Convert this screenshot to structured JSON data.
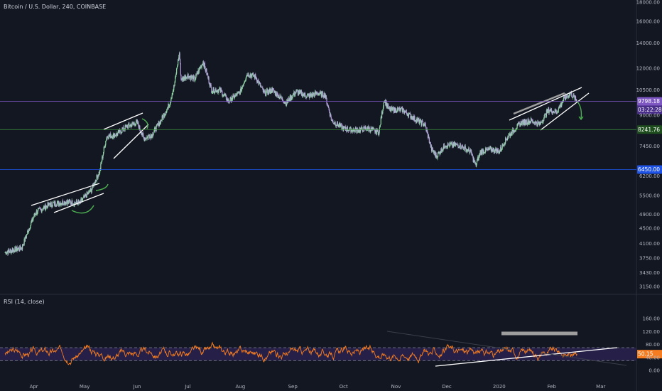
{
  "chart_data": [
    {
      "type": "candlestick",
      "title": "Bitcoin / U.S. Dollar, 240, COINBASE",
      "ylim": [
        3150,
        18000
      ],
      "y_scale": "log",
      "y_ticks": [
        "18000.00",
        "16000.00",
        "14000.00",
        "12000.00",
        "10500.00",
        "9000.00",
        "7450.00",
        "6200.00",
        "5500.00",
        "4900.00",
        "4500.00",
        "4100.00",
        "3750.00",
        "3430.00",
        "3150.00"
      ],
      "x_ticks": [
        "Apr",
        "May",
        "Jun",
        "Jul",
        "Aug",
        "Sep",
        "Oct",
        "Nov",
        "Dec",
        "2020",
        "Feb",
        "Mar"
      ],
      "close_approx": [
        [
          "2019-03-15",
          3880
        ],
        [
          "2019-03-25",
          4000
        ],
        [
          "2019-04-02",
          4950
        ],
        [
          "2019-04-10",
          5200
        ],
        [
          "2019-04-20",
          5300
        ],
        [
          "2019-04-28",
          5250
        ],
        [
          "2019-05-05",
          5700
        ],
        [
          "2019-05-10",
          6400
        ],
        [
          "2019-05-14",
          7900
        ],
        [
          "2019-05-20",
          8000
        ],
        [
          "2019-05-26",
          8400
        ],
        [
          "2019-06-01",
          8600
        ],
        [
          "2019-06-05",
          7800
        ],
        [
          "2019-06-10",
          8000
        ],
        [
          "2019-06-15",
          8700
        ],
        [
          "2019-06-20",
          9600
        ],
        [
          "2019-06-23",
          10800
        ],
        [
          "2019-06-26",
          13200
        ],
        [
          "2019-06-27",
          11200
        ],
        [
          "2019-07-01",
          11500
        ],
        [
          "2019-07-05",
          11200
        ],
        [
          "2019-07-10",
          12500
        ],
        [
          "2019-07-15",
          10500
        ],
        [
          "2019-07-20",
          10500
        ],
        [
          "2019-07-25",
          9800
        ],
        [
          "2019-08-01",
          10400
        ],
        [
          "2019-08-05",
          11600
        ],
        [
          "2019-08-10",
          11400
        ],
        [
          "2019-08-15",
          10300
        ],
        [
          "2019-08-20",
          10500
        ],
        [
          "2019-08-28",
          9700
        ],
        [
          "2019-09-03",
          10400
        ],
        [
          "2019-09-10",
          10100
        ],
        [
          "2019-09-15",
          10300
        ],
        [
          "2019-09-20",
          10200
        ],
        [
          "2019-09-24",
          8700
        ],
        [
          "2019-10-01",
          8300
        ],
        [
          "2019-10-08",
          8200
        ],
        [
          "2019-10-15",
          8300
        ],
        [
          "2019-10-22",
          8100
        ],
        [
          "2019-10-25",
          9900
        ],
        [
          "2019-10-28",
          9300
        ],
        [
          "2019-11-05",
          9300
        ],
        [
          "2019-11-12",
          8800
        ],
        [
          "2019-11-18",
          8500
        ],
        [
          "2019-11-22",
          7300
        ],
        [
          "2019-11-25",
          7000
        ],
        [
          "2019-11-30",
          7500
        ],
        [
          "2019-12-08",
          7500
        ],
        [
          "2019-12-15",
          7200
        ],
        [
          "2019-12-18",
          6600
        ],
        [
          "2019-12-21",
          7200
        ],
        [
          "2019-12-28",
          7300
        ],
        [
          "2020-01-01",
          7200
        ],
        [
          "2020-01-06",
          7900
        ],
        [
          "2020-01-14",
          8600
        ],
        [
          "2020-01-20",
          8700
        ],
        [
          "2020-01-25",
          8500
        ],
        [
          "2020-01-30",
          9300
        ],
        [
          "2020-02-04",
          9200
        ],
        [
          "2020-02-08",
          9900
        ],
        [
          "2020-02-12",
          10300
        ],
        [
          "2020-02-16",
          9798.18
        ]
      ],
      "price_lines": [
        {
          "value": 9798.18,
          "label": "9798.18",
          "color": "#7e57c2"
        },
        {
          "value": 8241.76,
          "label": "8241.76",
          "color": "#1e4d1e"
        },
        {
          "value": 6450.0,
          "label": "6450.00",
          "color": "#1e53e5"
        }
      ],
      "countdown": "03:22:28"
    },
    {
      "type": "line",
      "title": "RSI (14, close)",
      "ylim": [
        0,
        160
      ],
      "y_ticks": [
        "160.00",
        "120.00",
        "80.00",
        "40.00",
        "0.00"
      ],
      "bands": [
        30,
        70
      ],
      "series": [
        {
          "values": [
            50.15
          ]
        }
      ],
      "last_label": "50.15",
      "last_value": 50.15,
      "color": "#f57c20"
    }
  ],
  "colors": {
    "background": "#131722",
    "up": "#8fd3a4",
    "down": "#b39ddb",
    "rsi": "#f57c20",
    "rsi_band_fill": "#2a2250",
    "text": "#b2b5be",
    "annotation_white": "#ffffff",
    "annotation_green": "#4caf50"
  }
}
